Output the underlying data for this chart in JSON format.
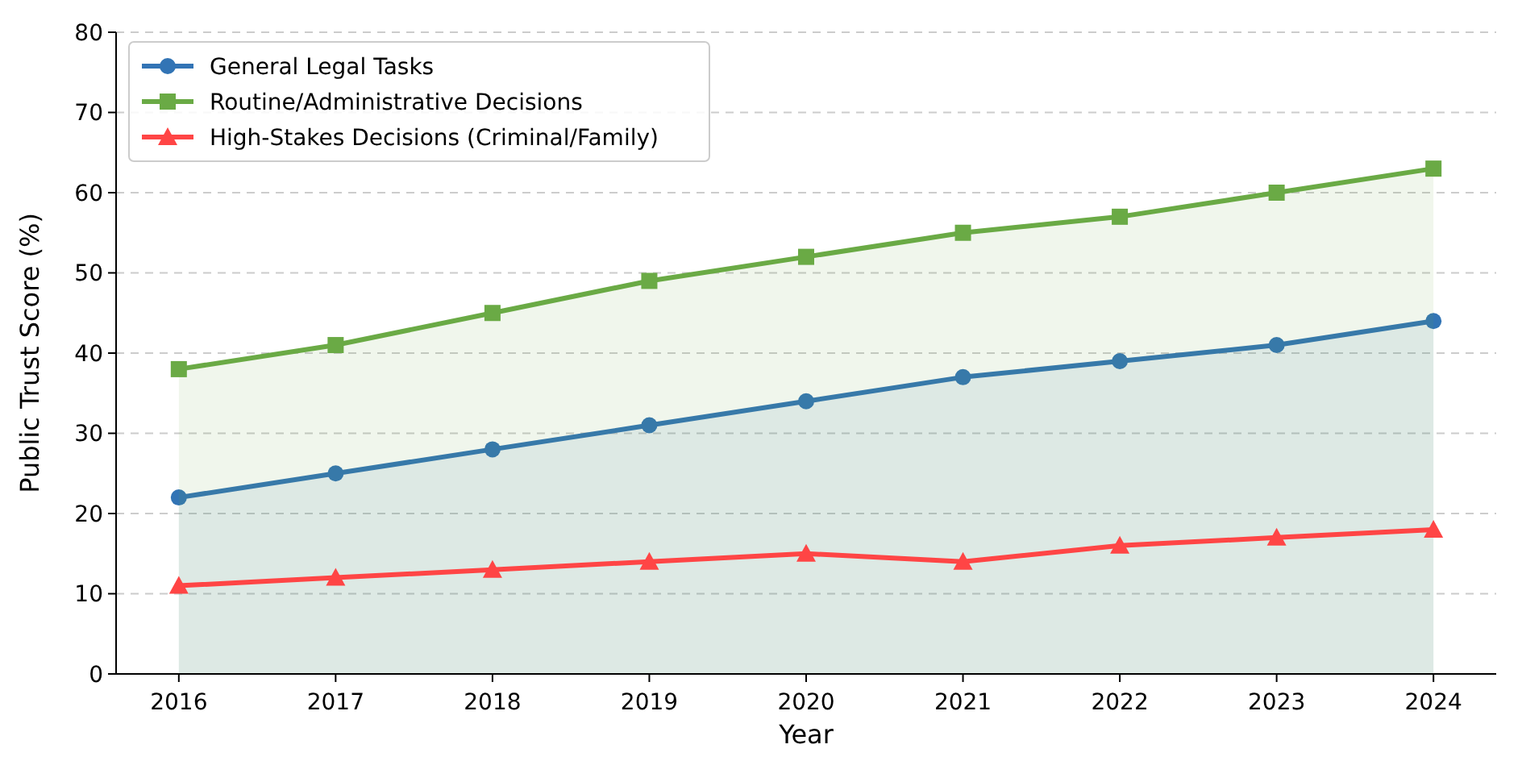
{
  "chart_data": {
    "type": "line",
    "xlabel": "Year",
    "ylabel": "Public Trust Score (%)",
    "x": [
      2016,
      2017,
      2018,
      2019,
      2020,
      2021,
      2022,
      2023,
      2024
    ],
    "xlim": [
      2015.6,
      2024.4
    ],
    "xticks": [
      2016,
      2017,
      2018,
      2019,
      2020,
      2021,
      2022,
      2023,
      2024
    ],
    "ylim": [
      0,
      80
    ],
    "yticks": [
      0,
      10,
      20,
      30,
      40,
      50,
      60,
      70,
      80
    ],
    "grid": "y",
    "legend": "top left",
    "series": [
      {
        "name": "General Legal Tasks",
        "type": "area",
        "color": "#3274b5",
        "marker": "circle",
        "values": [
          22,
          25,
          28,
          31,
          34,
          37,
          39,
          41,
          44
        ]
      },
      {
        "name": "Routine/Administrative Decisions",
        "type": "area",
        "color": "#6aaa45",
        "marker": "square",
        "values": [
          38,
          41,
          45,
          49,
          52,
          55,
          57,
          60,
          63
        ]
      },
      {
        "name": "High-Stakes Decisions (Criminal/Family)",
        "color": "#ff4545",
        "marker": "triangle",
        "values": [
          11,
          12,
          13,
          14,
          15,
          14,
          16,
          17,
          18
        ]
      }
    ]
  }
}
